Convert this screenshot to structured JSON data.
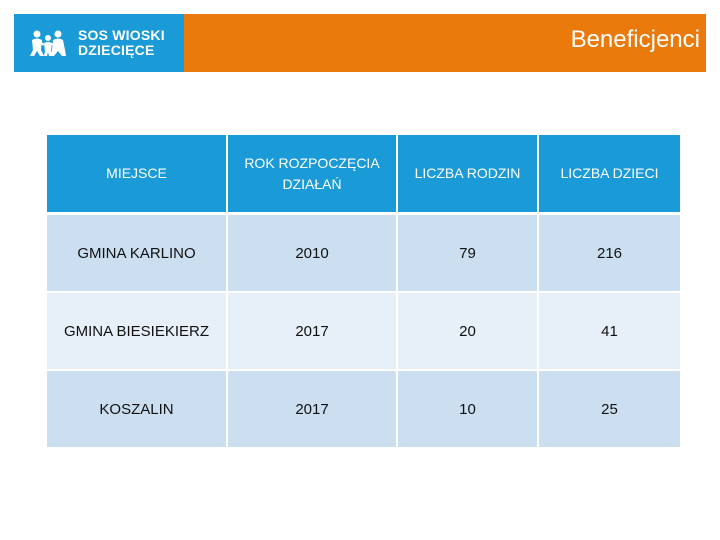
{
  "header": {
    "logo_line1": "SOS WIOSKI",
    "logo_line2": "DZIECIĘCE",
    "title": "Beneficjenci",
    "bar_color": "#ea7a0c",
    "logo_bg_color": "#1a9ad6",
    "logo_icon": "sos-children-logo-icon"
  },
  "table": {
    "headers": [
      "MIEJSCE",
      "ROK ROZPOCZĘCIA DZIAŁAŃ",
      "LICZBA RODZIN",
      "LICZBA DZIECI"
    ],
    "rows": [
      [
        "GMINA KARLINO",
        "2010",
        "79",
        "216"
      ],
      [
        "GMINA BIESIEKIERZ",
        "2017",
        "20",
        "41"
      ],
      [
        "KOSZALIN",
        "2017",
        "10",
        "25"
      ]
    ],
    "header_color": "#1a9ad6",
    "row_colors": [
      "#cbdff0",
      "#e7eff8"
    ]
  }
}
